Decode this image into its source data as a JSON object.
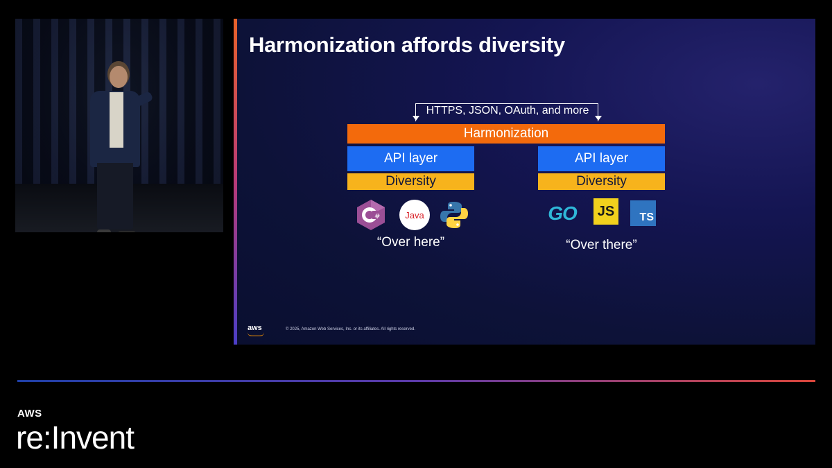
{
  "slide": {
    "title": "Harmonization affords diversity",
    "protocols": "HTTPS, JSON, OAuth, and more",
    "harmonization": "Harmonization",
    "left": {
      "api_layer": "API layer",
      "diversity": "Diversity",
      "caption": "“Over here”",
      "languages": [
        "C#",
        "Java",
        "Python"
      ]
    },
    "right": {
      "api_layer": "API layer",
      "diversity": "Diversity",
      "caption": "“Over there”",
      "languages": [
        "GO",
        "JS",
        "TS"
      ]
    },
    "aws_logo": "aws",
    "copyright": "© 2025, Amazon Web Services, Inc. or its affiliates. All rights reserved."
  },
  "colors": {
    "harmonization": "#f36a0c",
    "api_layer": "#1d6cf2",
    "diversity": "#f7b31c"
  },
  "branding": {
    "aws": "AWS",
    "reinvent": "re:Invent"
  }
}
